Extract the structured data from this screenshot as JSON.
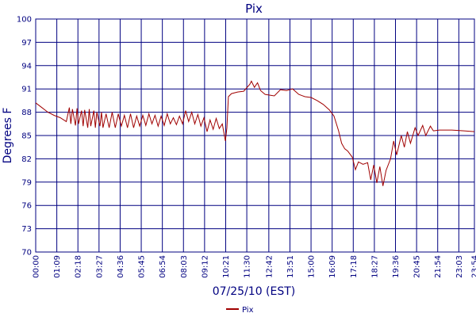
{
  "chart_data": {
    "type": "line",
    "title": "Pix",
    "x_label": "07/25/10 (EST)",
    "y_label": "Degrees F",
    "ylim": [
      70,
      100
    ],
    "yticks": [
      70,
      73,
      76,
      79,
      82,
      85,
      88,
      91,
      94,
      97,
      100
    ],
    "xlim": [
      0,
      1434
    ],
    "xticks": [
      {
        "value": 0,
        "label": "00:00"
      },
      {
        "value": 69,
        "label": "01:09"
      },
      {
        "value": 138,
        "label": "02:18"
      },
      {
        "value": 207,
        "label": "03:27"
      },
      {
        "value": 276,
        "label": "04:36"
      },
      {
        "value": 345,
        "label": "05:45"
      },
      {
        "value": 414,
        "label": "06:54"
      },
      {
        "value": 483,
        "label": "08:03"
      },
      {
        "value": 552,
        "label": "09:12"
      },
      {
        "value": 621,
        "label": "10:21"
      },
      {
        "value": 690,
        "label": "11:30"
      },
      {
        "value": 762,
        "label": "12:42"
      },
      {
        "value": 831,
        "label": "13:51"
      },
      {
        "value": 900,
        "label": "15:00"
      },
      {
        "value": 969,
        "label": "16:09"
      },
      {
        "value": 1038,
        "label": "17:18"
      },
      {
        "value": 1107,
        "label": "18:27"
      },
      {
        "value": 1176,
        "label": "19:36"
      },
      {
        "value": 1245,
        "label": "20:45"
      },
      {
        "value": 1314,
        "label": "21:54"
      },
      {
        "value": 1383,
        "label": "23:03"
      },
      {
        "value": 1434,
        "label": "23:54"
      }
    ],
    "grid": true,
    "legend": "bottom",
    "x": [
      0,
      20,
      40,
      60,
      80,
      100,
      110,
      115,
      120,
      130,
      135,
      140,
      150,
      155,
      160,
      170,
      175,
      180,
      190,
      195,
      200,
      210,
      215,
      220,
      230,
      240,
      250,
      260,
      270,
      280,
      290,
      300,
      310,
      320,
      330,
      340,
      350,
      360,
      370,
      380,
      390,
      400,
      410,
      420,
      430,
      440,
      450,
      460,
      470,
      480,
      490,
      500,
      510,
      520,
      530,
      540,
      550,
      560,
      570,
      580,
      590,
      600,
      610,
      620,
      625,
      630,
      640,
      660,
      680,
      700,
      705,
      715,
      725,
      735,
      750,
      780,
      800,
      820,
      840,
      860,
      880,
      900,
      920,
      940,
      960,
      975,
      990,
      1000,
      1010,
      1020,
      1035,
      1045,
      1055,
      1070,
      1085,
      1095,
      1105,
      1115,
      1125,
      1135,
      1145,
      1160,
      1170,
      1180,
      1195,
      1205,
      1215,
      1225,
      1240,
      1250,
      1265,
      1275,
      1290,
      1300,
      1320,
      1360,
      1400,
      1434
    ],
    "series": [
      {
        "name": "Pix",
        "color": "#a00000",
        "values": [
          89.2,
          88.6,
          88,
          87.6,
          87.3,
          86.8,
          88.6,
          86.5,
          88.4,
          86.3,
          88.5,
          86.5,
          88.2,
          86.2,
          88.3,
          86,
          88.4,
          86.2,
          88.2,
          86,
          88,
          86.2,
          88,
          86,
          87.8,
          86,
          88,
          86,
          87.8,
          86.2,
          87.6,
          86,
          87.8,
          86,
          87.5,
          86.2,
          87.6,
          86.3,
          87.8,
          86.5,
          87.6,
          86.2,
          87.5,
          86.3,
          87.8,
          86.5,
          87.3,
          86.4,
          87.5,
          86.5,
          88.2,
          86.8,
          88,
          86.5,
          87.7,
          86.2,
          87.3,
          85.5,
          87,
          85.8,
          87.2,
          85.9,
          86.5,
          84.3,
          86,
          90,
          90.4,
          90.6,
          90.7,
          91.6,
          92,
          91.2,
          91.8,
          90.8,
          90.3,
          90.1,
          90.9,
          90.8,
          91,
          90.3,
          90,
          89.9,
          89.5,
          89,
          88.3,
          87.5,
          85.6,
          84,
          83.3,
          83,
          82.2,
          80.6,
          81.6,
          81.3,
          81.5,
          79.3,
          81.2,
          78.9,
          81,
          78.5,
          80.5,
          82,
          84.3,
          82.5,
          85,
          83.5,
          85.5,
          84,
          86,
          85,
          86.3,
          85,
          86.2,
          85.6,
          85.7,
          85.7,
          85.6,
          85.5
        ]
      }
    ]
  }
}
